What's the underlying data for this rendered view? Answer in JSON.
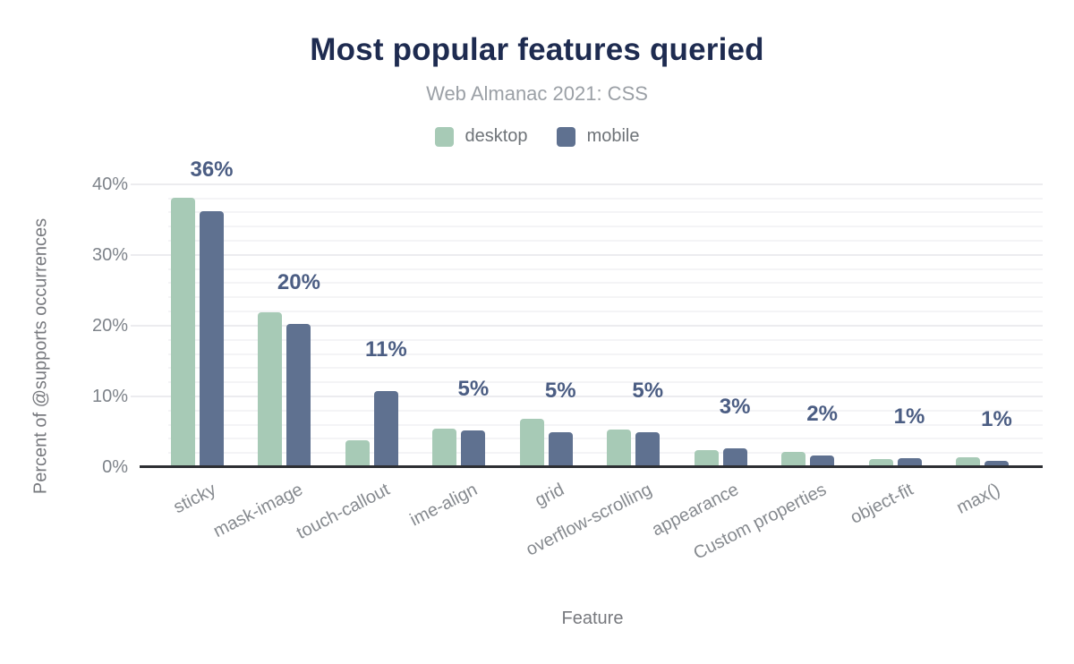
{
  "figure": {
    "title": "Most popular features queried",
    "subtitle": "Web Almanac 2021: CSS",
    "x_axis_title": "Feature",
    "y_axis_title": "Percent of @supports occurrences"
  },
  "legend": {
    "items": [
      {
        "label": "desktop",
        "color": "#a7cab6"
      },
      {
        "label": "mobile",
        "color": "#5f7190"
      }
    ]
  },
  "colors": {
    "title": "#1e2b50",
    "subtitle": "#9ba0a6",
    "desktop_bar": "#a7cab6",
    "mobile_bar": "#5f7190",
    "value_label": "#4b5d83",
    "axis_text": "#7e838a",
    "axis_line": "#2d2f33",
    "gridline": "#ececef",
    "background": "#ffffff"
  },
  "chart_data": {
    "type": "bar",
    "title": "Most popular features queried",
    "subtitle": "Web Almanac 2021: CSS",
    "xlabel": "Feature",
    "ylabel": "Percent of @supports occurrences",
    "categories": [
      "sticky",
      "mask-image",
      "touch-callout",
      "ime-align",
      "grid",
      "overflow-scrolling",
      "appearance",
      "Custom properties",
      "object-fit",
      "max()"
    ],
    "series": [
      {
        "name": "desktop",
        "color": "#a7cab6",
        "values": [
          38.1,
          21.9,
          3.8,
          5.5,
          6.8,
          5.3,
          2.4,
          2.2,
          1.2,
          1.4
        ]
      },
      {
        "name": "mobile",
        "color": "#5f7190",
        "values": [
          36.2,
          20.2,
          10.8,
          5.2,
          4.9,
          4.9,
          2.6,
          1.7,
          1.3,
          0.9
        ]
      }
    ],
    "data_labels": [
      "36%",
      "20%",
      "11%",
      "5%",
      "5%",
      "5%",
      "3%",
      "2%",
      "1%",
      "1%"
    ],
    "yticks": [
      {
        "label": "0%",
        "value": 0
      },
      {
        "label": "10%",
        "value": 10
      },
      {
        "label": "20%",
        "value": 20
      },
      {
        "label": "30%",
        "value": 30
      },
      {
        "label": "40%",
        "value": 40
      }
    ],
    "ylim": [
      0,
      40
    ],
    "grid": "horizontal, minor lines every 2%, major every 10%",
    "legend_position": "top-center"
  }
}
